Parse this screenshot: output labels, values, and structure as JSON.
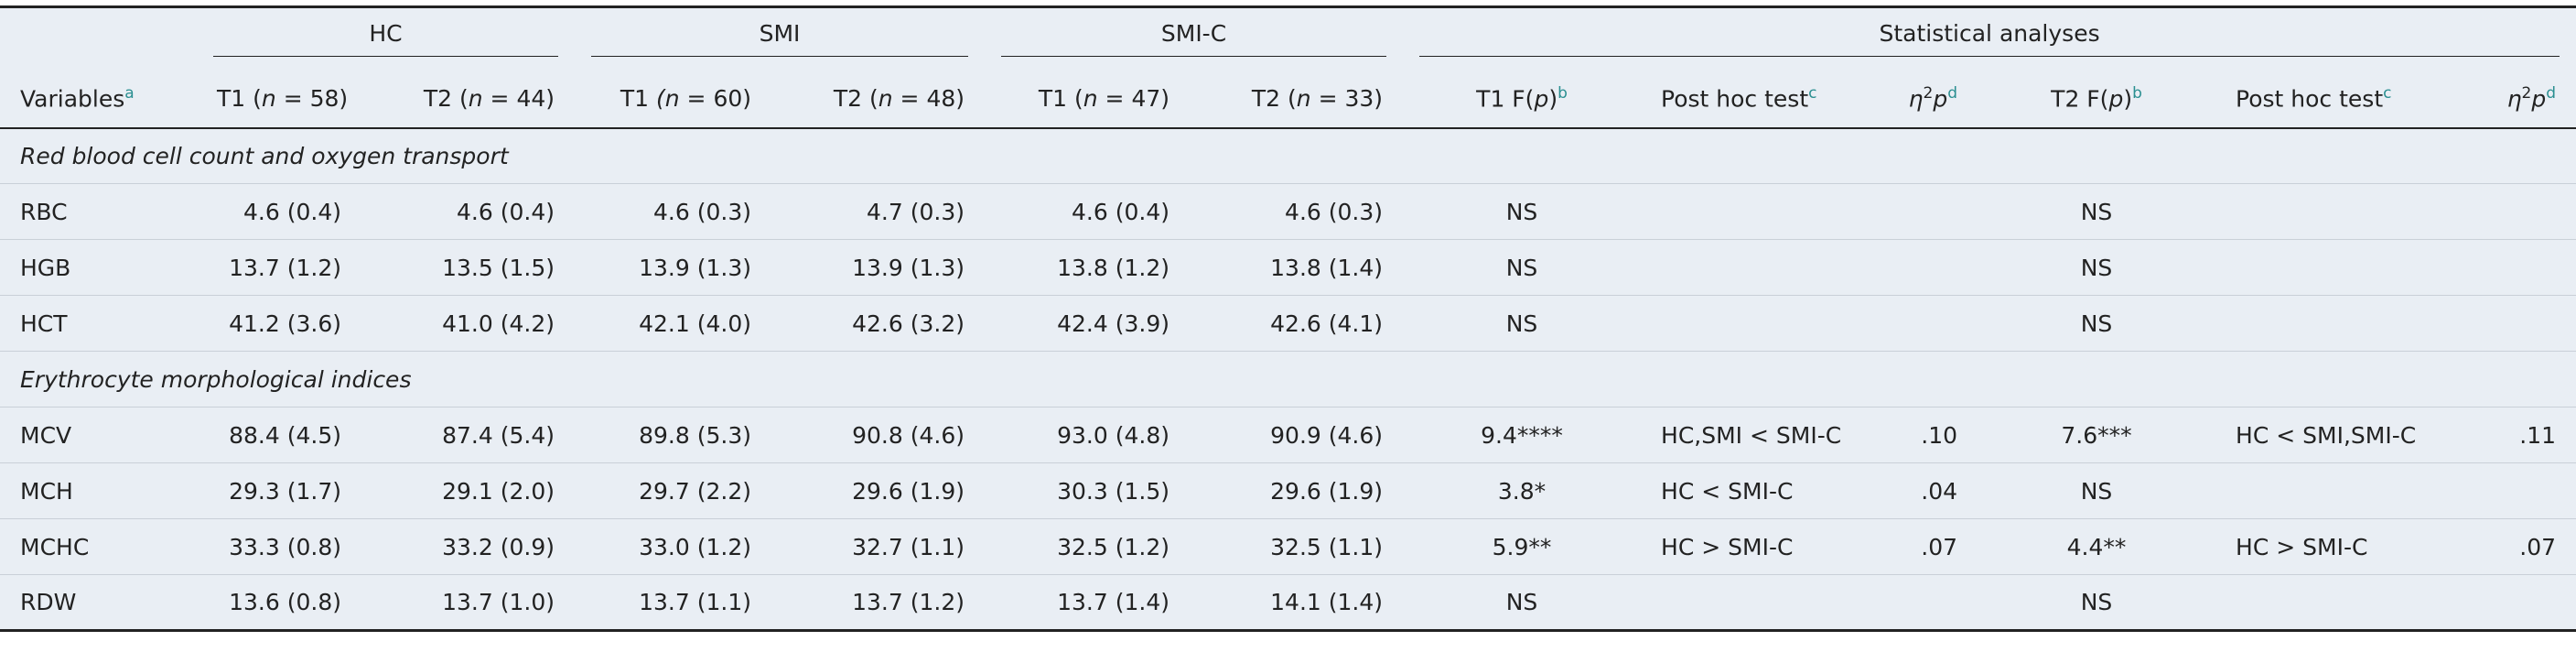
{
  "header": {
    "groups": [
      "HC",
      "SMI",
      "SMI-C",
      "Statistical analyses"
    ],
    "columns": [
      {
        "text": "Variables",
        "note": "a"
      },
      {
        "parts": [
          "T1 (",
          "n",
          " = 58)"
        ]
      },
      {
        "parts": [
          "T2 (",
          "n",
          " = 44)"
        ]
      },
      {
        "parts": [
          "T1 ",
          "(n",
          " = 60)"
        ]
      },
      {
        "parts": [
          "T2 (",
          "n",
          " = 48)"
        ]
      },
      {
        "parts": [
          "T1 (",
          "n",
          " = 47)"
        ]
      },
      {
        "parts": [
          "T2 (",
          "n",
          " = 33)"
        ]
      },
      {
        "parts": [
          "T1 F(",
          "p",
          ")"
        ],
        "note": "b"
      },
      {
        "text": "Post hoc test",
        "note": "c"
      },
      {
        "parts": [
          "η",
          "2",
          "p"
        ],
        "note": "d"
      },
      {
        "parts": [
          "T2 F(",
          "p",
          ")"
        ],
        "note": "b"
      },
      {
        "text": "Post hoc test",
        "note": "c"
      },
      {
        "parts": [
          "η",
          "2",
          "p"
        ],
        "note": "d"
      }
    ]
  },
  "sections": [
    {
      "title": "Red blood cell count and oxygen transport",
      "rows": [
        {
          "variable": "RBC",
          "cells": [
            "4.6 (0.4)",
            "4.6 (0.4)",
            "4.6 (0.3)",
            "4.7 (0.3)",
            "4.6 (0.4)",
            "4.6 (0.3)",
            "NS",
            null,
            null,
            "NS",
            null,
            null
          ]
        },
        {
          "variable": "HGB",
          "cells": [
            "13.7 (1.2)",
            "13.5 (1.5)",
            "13.9 (1.3)",
            "13.9 (1.3)",
            "13.8 (1.2)",
            "13.8 (1.4)",
            "NS",
            null,
            null,
            "NS",
            null,
            null
          ]
        },
        {
          "variable": "HCT",
          "cells": [
            "41.2 (3.6)",
            "41.0 (4.2)",
            "42.1 (4.0)",
            "42.6 (3.2)",
            "42.4 (3.9)",
            "42.6 (4.1)",
            "NS",
            null,
            null,
            "NS",
            null,
            null
          ]
        }
      ]
    },
    {
      "title": "Erythrocyte morphological indices",
      "rows": [
        {
          "variable": "MCV",
          "cells": [
            "88.4 (4.5)",
            "87.4 (5.4)",
            "89.8 (5.3)",
            "90.8 (4.6)",
            "93.0 (4.8)",
            "90.9 (4.6)",
            "9.4****",
            "HC,SMI < SMI-C",
            ".10",
            "7.6***",
            "HC < SMI,SMI-C",
            ".11"
          ]
        },
        {
          "variable": "MCH",
          "cells": [
            "29.3 (1.7)",
            "29.1 (2.0)",
            "29.7 (2.2)",
            "29.6 (1.9)",
            "30.3 (1.5)",
            "29.6 (1.9)",
            "3.8*",
            "HC < SMI-C",
            ".04",
            "NS",
            null,
            null
          ]
        },
        {
          "variable": "MCHC",
          "cells": [
            "33.3 (0.8)",
            "33.2 (0.9)",
            "33.0 (1.2)",
            "32.7 (1.1)",
            "32.5 (1.2)",
            "32.5 (1.1)",
            "5.9**",
            "HC > SMI-C",
            ".07",
            "4.4**",
            "HC > SMI-C",
            ".07"
          ]
        },
        {
          "variable": "RDW",
          "cells": [
            "13.6 (0.8)",
            "13.7 (1.0)",
            "13.7 (1.1)",
            "13.7 (1.2)",
            "13.7 (1.4)",
            "14.1 (1.4)",
            "NS",
            null,
            null,
            "NS",
            null,
            null
          ]
        }
      ]
    }
  ]
}
